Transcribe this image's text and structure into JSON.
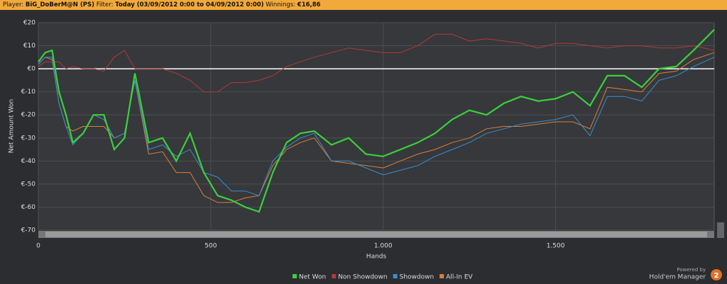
{
  "header": {
    "player_label": "Player:",
    "player": "BiG_DoBerM@N (PS)",
    "filter_label": "Filter:",
    "filter": "Today (03/09/2012 0:00 to 04/09/2012 0:00)",
    "winnings_label": "Winnings:",
    "winnings": "€16,86"
  },
  "chart_data": {
    "type": "line",
    "x_label": "Hands",
    "y_label": "Net Amount Won",
    "x": [
      0,
      20,
      40,
      60,
      80,
      100,
      130,
      160,
      190,
      220,
      250,
      280,
      320,
      360,
      400,
      440,
      480,
      520,
      560,
      600,
      640,
      680,
      720,
      760,
      800,
      850,
      900,
      950,
      1000,
      1050,
      1100,
      1150,
      1200,
      1250,
      1300,
      1350,
      1400,
      1450,
      1500,
      1550,
      1600,
      1650,
      1700,
      1750,
      1800,
      1850,
      1900,
      1960
    ],
    "series": [
      {
        "name": "Net Won",
        "color": "#3ccf3c",
        "values": [
          3,
          7,
          8,
          -10,
          -20,
          -32,
          -28,
          -20,
          -20,
          -35,
          -30,
          -2,
          -32,
          -30,
          -40,
          -28,
          -45,
          -55,
          -57,
          -60,
          -62,
          -45,
          -32,
          -28,
          -27,
          -33,
          -30,
          -37,
          -38,
          -35,
          -32,
          -28,
          -22,
          -18,
          -20,
          -15,
          -12,
          -14,
          -13,
          -10,
          -16,
          -3,
          -3,
          -8,
          0,
          1,
          8,
          17
        ]
      },
      {
        "name": "Non Showdown",
        "color": "#b23a3a",
        "values": [
          1,
          3,
          3,
          3,
          0,
          1,
          0,
          0,
          -1,
          5,
          8,
          0,
          0,
          0,
          -2,
          -5,
          -10,
          -10,
          -6,
          -6,
          -5,
          -3,
          1,
          3,
          5,
          7,
          9,
          8,
          7,
          7,
          10,
          15,
          15,
          12,
          13,
          12,
          11,
          9,
          11,
          11,
          10,
          9,
          10,
          10,
          9,
          9,
          10,
          8
        ]
      },
      {
        "name": "Showdown",
        "color": "#3a8fd0",
        "values": [
          2,
          5,
          5,
          -15,
          -25,
          -33,
          -28,
          -20,
          -22,
          -30,
          -28,
          -5,
          -35,
          -33,
          -38,
          -35,
          -45,
          -47,
          -53,
          -53,
          -55,
          -40,
          -34,
          -30,
          -28,
          -40,
          -40,
          -43,
          -46,
          -44,
          -42,
          -38,
          -35,
          -32,
          -28,
          -26,
          -24,
          -23,
          -22,
          -20,
          -29,
          -12,
          -12,
          -14,
          -5,
          -3,
          1,
          5
        ]
      },
      {
        "name": "All-In EV",
        "color": "#d9803a",
        "values": [
          2,
          5,
          4,
          -15,
          -25,
          -27,
          -25,
          -25,
          -25,
          -30,
          -28,
          -5,
          -37,
          -36,
          -45,
          -45,
          -55,
          -58,
          -58,
          -56,
          -55,
          -42,
          -35,
          -32,
          -30,
          -40,
          -41,
          -42,
          -43,
          -40,
          -37,
          -35,
          -32,
          -30,
          -26,
          -25,
          -25,
          -24,
          -23,
          -23,
          -26,
          -8,
          -9,
          -10,
          -2,
          -1,
          4,
          7
        ]
      }
    ],
    "xlim": [
      0,
      1960
    ],
    "ylim": [
      -70,
      20
    ],
    "xticks": [
      0,
      500,
      {
        "value": 1000,
        "label": "1.000"
      },
      {
        "value": 1500,
        "label": "1.500"
      }
    ],
    "yticks": [
      {
        "value": 20,
        "label": "€20"
      },
      {
        "value": 10,
        "label": "€10"
      },
      {
        "value": 0,
        "label": "€0"
      },
      {
        "value": -10,
        "label": "€-10"
      },
      {
        "value": -20,
        "label": "€-20"
      },
      {
        "value": -30,
        "label": "€-30"
      },
      {
        "value": -40,
        "label": "€-40"
      },
      {
        "value": -50,
        "label": "€-50"
      },
      {
        "value": -60,
        "label": "€-60"
      },
      {
        "value": -70,
        "label": "€-70"
      }
    ],
    "grid": true,
    "legend": "bottom"
  },
  "branding": {
    "powered": "Powered by",
    "product": "Hold'em Manager",
    "version": "2"
  }
}
